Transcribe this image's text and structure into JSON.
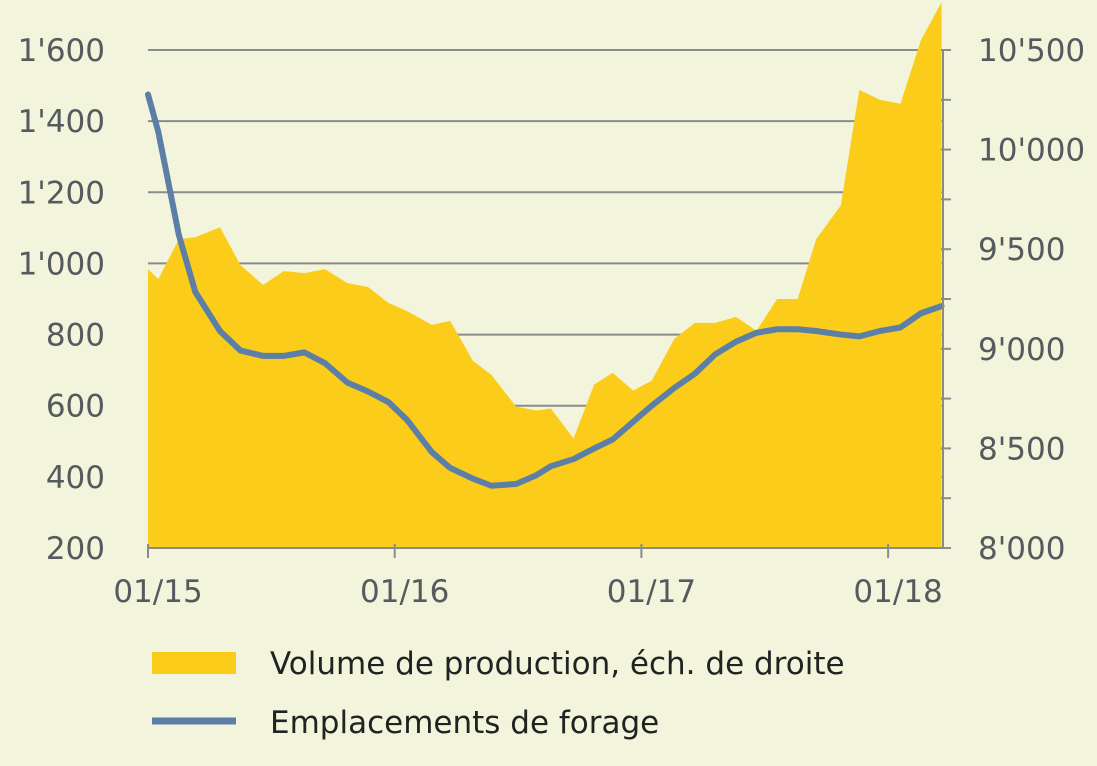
{
  "chart_data": {
    "type": "area+line",
    "x_ticks": [
      "01/15",
      "01/16",
      "01/17",
      "01/18"
    ],
    "left_axis": {
      "ticks": [
        "1'600",
        "1'400",
        "1'200",
        "1'000",
        "800",
        "600",
        "400",
        "200"
      ],
      "range": [
        200,
        1600
      ]
    },
    "right_axis": {
      "ticks": [
        "10'500",
        "10'000",
        "9'500",
        "9'000",
        "8'500",
        "8'000"
      ],
      "range": [
        8000,
        10500
      ]
    },
    "x_range": [
      0,
      38.67
    ],
    "grid": true,
    "legend_position": "bottom",
    "series": [
      {
        "name": "Volume de production, éch. de droite",
        "type": "area",
        "axis": "right",
        "color": "#fccc1a",
        "x": [
          0,
          0.5,
          1.5,
          2.3,
          3.5,
          4.5,
          5.6,
          6.6,
          7.6,
          8.6,
          9.7,
          10.7,
          11.7,
          12.6,
          13.8,
          14.7,
          15.8,
          16.7,
          17.9,
          18.9,
          19.6,
          20.7,
          21.7,
          22.6,
          23.6,
          24.5,
          25.6,
          26.6,
          27.6,
          28.6,
          29.6,
          30.6,
          31.6,
          32.5,
          33.7,
          34.6,
          35.6,
          36.6,
          37.6,
          38.6
        ],
        "y": [
          9400,
          9350,
          9550,
          9560,
          9610,
          9420,
          9320,
          9390,
          9380,
          9400,
          9330,
          9310,
          9230,
          9190,
          9120,
          9140,
          8940,
          8870,
          8710,
          8690,
          8700,
          8550,
          8820,
          8880,
          8790,
          8840,
          9050,
          9130,
          9130,
          9160,
          9090,
          9250,
          9250,
          9550,
          9720,
          10300,
          10250,
          10230,
          10550,
          10740
        ]
      },
      {
        "name": "Emplacements de forage",
        "type": "line",
        "axis": "left",
        "color": "#5b7fa6",
        "x": [
          0,
          0.5,
          1.5,
          2.3,
          3.5,
          4.5,
          5.6,
          6.6,
          7.6,
          8.6,
          9.7,
          10.7,
          11.7,
          12.6,
          13.8,
          14.7,
          15.8,
          16.7,
          17.9,
          18.9,
          19.6,
          20.7,
          21.7,
          22.6,
          23.6,
          24.5,
          25.6,
          26.6,
          27.6,
          28.6,
          29.6,
          30.6,
          31.6,
          32.5,
          33.7,
          34.6,
          35.6,
          36.6,
          37.6,
          38.6
        ],
        "y": [
          1475,
          1370,
          1080,
          920,
          810,
          755,
          740,
          740,
          750,
          720,
          665,
          640,
          610,
          560,
          470,
          425,
          395,
          375,
          380,
          405,
          430,
          450,
          480,
          505,
          555,
          600,
          650,
          690,
          745,
          780,
          805,
          815,
          815,
          810,
          800,
          795,
          810,
          820,
          860,
          880
        ]
      }
    ]
  },
  "legend": [
    {
      "label": "Volume de production, éch. de droite",
      "swatch": "area",
      "color": "#fccc1a"
    },
    {
      "label": "Emplacements de forage",
      "swatch": "line",
      "color": "#5b7fa6"
    }
  ]
}
